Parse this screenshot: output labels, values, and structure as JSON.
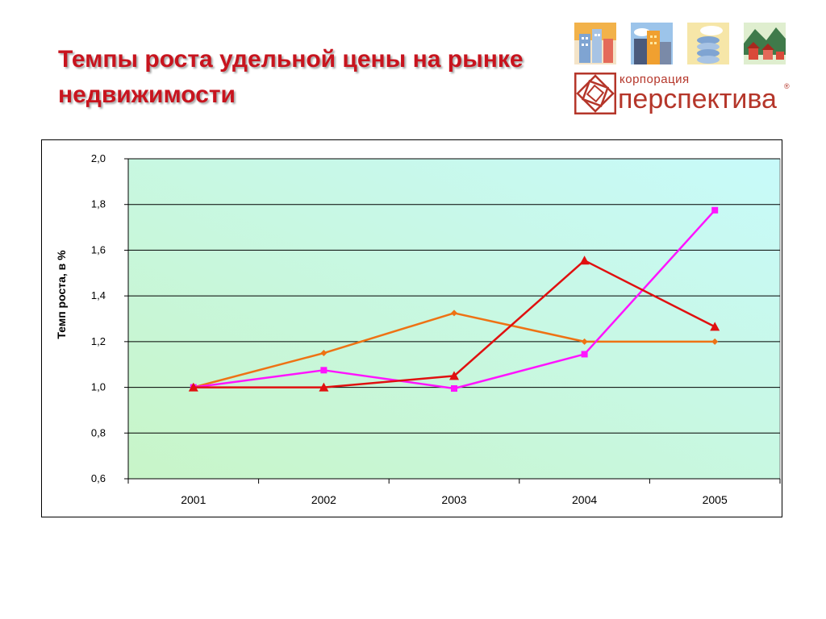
{
  "slide": {
    "title": "Темпы роста удельной цены на рынке недвижимости"
  },
  "logo": {
    "small_text": "корпорация",
    "big_text": "перспектива",
    "registered": "®",
    "brand_color": "#b5362a"
  },
  "chart_data": {
    "type": "line",
    "title": "",
    "xlabel": "",
    "ylabel": "Темп роста, в %",
    "categories": [
      "2001",
      "2002",
      "2003",
      "2004",
      "2005"
    ],
    "ylim": [
      0.6,
      2.0
    ],
    "yticks": [
      "0,6",
      "0,8",
      "1,0",
      "1,2",
      "1,4",
      "1,6",
      "1,8",
      "2,0"
    ],
    "grid": true,
    "legend": "none",
    "background_gradient": [
      "#c8f5c8",
      "#c8fafa"
    ],
    "series": [
      {
        "color": "#ee7214",
        "marker": "diamond",
        "values": [
          1.0,
          1.15,
          1.325,
          1.2,
          1.2
        ]
      },
      {
        "color": "#ff14ff",
        "marker": "square",
        "values": [
          1.0,
          1.075,
          0.995,
          1.145,
          1.775
        ]
      },
      {
        "color": "#e01010",
        "marker": "triangle",
        "values": [
          1.0,
          1.0,
          1.05,
          1.555,
          1.265
        ]
      }
    ]
  }
}
